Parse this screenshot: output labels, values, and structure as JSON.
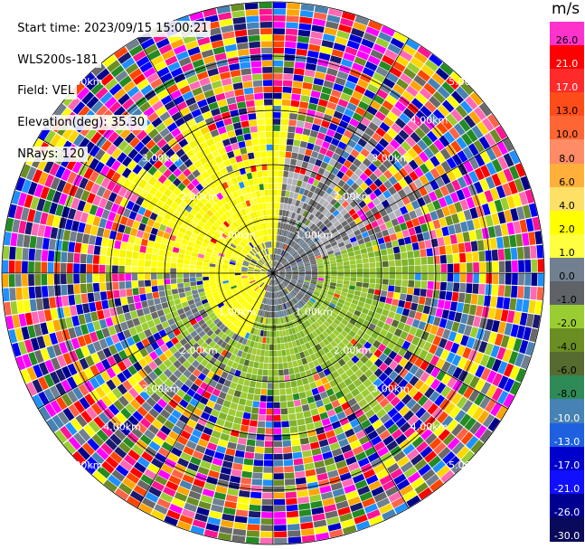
{
  "header": {
    "start_time": "Start time: 2023/09/15 15:00:21",
    "instrument": "WLS200s-181",
    "field": "Field: VEL",
    "elevation": "Elevation(deg): 35.30",
    "nrays": "NRays: 120"
  },
  "colorbar": {
    "unit": "m/s",
    "bins": [
      {
        "label": "26.0",
        "color": "#ff00ff"
      },
      {
        "label": "21.0",
        "color": "#ff1493"
      },
      {
        "label": "17.0",
        "color": "#ff0000"
      },
      {
        "label": "13.0",
        "color": "#ff2020"
      },
      {
        "label": "10.0",
        "color": "#ff4500"
      },
      {
        "label": "8.0",
        "color": "#ff7f50"
      },
      {
        "label": "6.0",
        "color": "#ffa500"
      },
      {
        "label": "4.0",
        "color": "#ffd700"
      },
      {
        "label": "2.0",
        "color": "#ffff00"
      },
      {
        "label": "1.0",
        "color": "#ffff66"
      },
      {
        "label": "0.0",
        "color": "#708090"
      },
      {
        "label": "-1.0",
        "color": "#696969"
      },
      {
        "label": "-2.0",
        "color": "#9acd32"
      },
      {
        "label": "-4.0",
        "color": "#6b8e23"
      },
      {
        "label": "-6.0",
        "color": "#556b2f"
      },
      {
        "label": "-8.0",
        "color": "#228b22"
      },
      {
        "label": "-10.0",
        "color": "#4682b4"
      },
      {
        "label": "-13.0",
        "color": "#1e90ff"
      },
      {
        "label": "-17.0",
        "color": "#0000cd"
      },
      {
        "label": "-21.0",
        "color": "#0000ff"
      },
      {
        "label": "-26.0",
        "color": "#00008b"
      },
      {
        "label": "-30.0",
        "color": "#191970"
      }
    ],
    "bar_colors": [
      "#ff33cc",
      "#ff0000",
      "#ff2a2a",
      "#ff4d1a",
      "#ff6633",
      "#ff8c66",
      "#ffb03b",
      "#ffe066",
      "#ffff00",
      "#ffff40",
      "#708090",
      "#5f6368",
      "#9acd32",
      "#6b8e23",
      "#556b2f",
      "#2e8b57",
      "#4682b4",
      "#1e60e0",
      "#0000cd",
      "#1010ff",
      "#000090",
      "#0a0a5a"
    ]
  },
  "chart_data": {
    "type": "heatmap",
    "projection": "polar PPI",
    "field": "VEL",
    "units": "m/s",
    "n_rays": 120,
    "range_rings_km": [
      1.0,
      2.0,
      3.0,
      4.0,
      5.0
    ],
    "ring_labels": [
      "1.00km",
      "2.00km",
      "3.00km",
      "4.00km",
      "5.00km"
    ],
    "value_range": [
      -30.0,
      26.0
    ],
    "features": {
      "north_west_inner_region": "positive ~1–4 m/s (yellow)",
      "east_south_inner_region": "negative ~-1 to -4 m/s (grey/green)",
      "outer_region": "noise (random colors)"
    }
  }
}
